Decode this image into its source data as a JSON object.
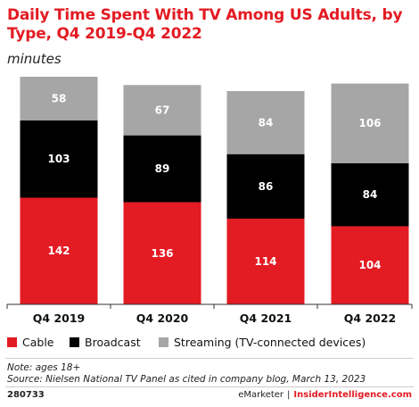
{
  "header": {
    "title": "Daily Time Spent With TV Among US Adults, by Type, Q4 2019-Q4 2022",
    "subtitle": "minutes"
  },
  "chart_data": {
    "type": "bar",
    "stacked": true,
    "categories": [
      "Q4 2019",
      "Q4 2020",
      "Q4 2021",
      "Q4 2022"
    ],
    "series": [
      {
        "name": "Cable",
        "values": [
          142,
          136,
          114,
          104
        ],
        "color": "#e31b23"
      },
      {
        "name": "Broadcast",
        "values": [
          103,
          89,
          86,
          84
        ],
        "color": "#000000"
      },
      {
        "name": "Streaming (TV-connected devices)",
        "values": [
          58,
          67,
          84,
          106
        ],
        "color": "#a6a6a6"
      }
    ],
    "ylim": [
      0,
      303
    ],
    "grid": false,
    "legend_position": "bottom"
  },
  "footer": {
    "note": "Note: ages 18+",
    "source": "Source: Nielsen National TV Panel as cited in company blog, March 13, 2023",
    "chart_id": "280733",
    "brand_left": "eMarketer",
    "separator": "|",
    "brand_right": "InsiderIntelligence.com"
  }
}
